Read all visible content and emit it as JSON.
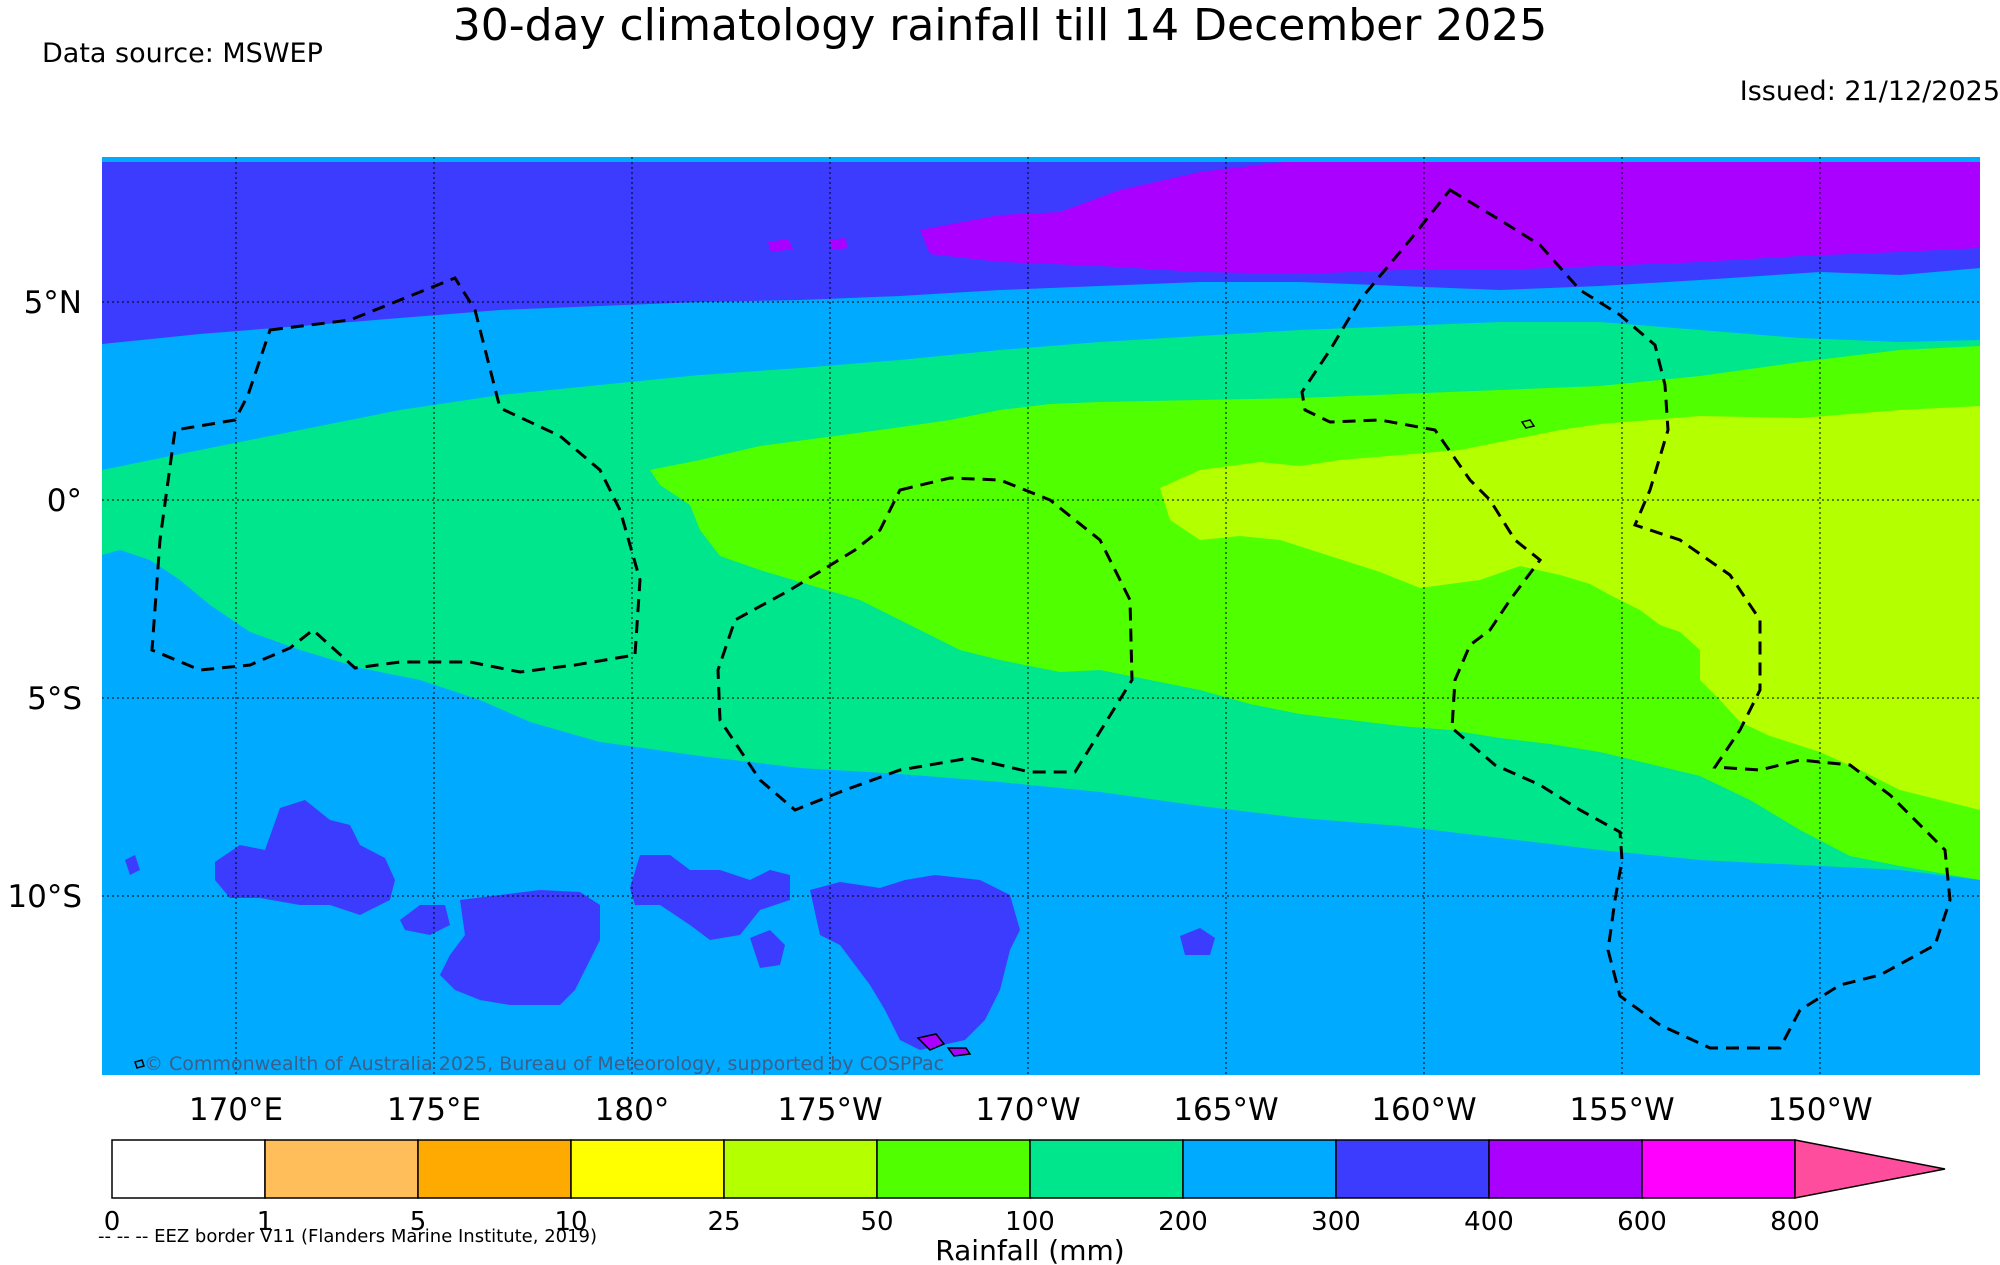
{
  "header": {
    "title": "30-day climatology rainfall till 14 December 2025",
    "data_source": "Data source: MSWEP",
    "issued": "Issued: 21/12/2025"
  },
  "map": {
    "lat_labels": [
      "5°N",
      "0°",
      "5°S",
      "10°S"
    ],
    "lon_labels": [
      "170°E",
      "175°E",
      "180°",
      "175°W",
      "170°W",
      "165°W",
      "160°W",
      "155°W",
      "150°W"
    ],
    "copyright": "© Commonwealth of Australia 2025, Bureau of Meteorology, supported by COSPPac"
  },
  "colorbar": {
    "title": "Rainfall (mm)",
    "ticks": [
      "0",
      "1",
      "5",
      "10",
      "25",
      "50",
      "100",
      "200",
      "300",
      "400",
      "600",
      "800"
    ],
    "colors": [
      "#ffffff",
      "#ffbe5a",
      "#ffaa00",
      "#ffff00",
      "#b4ff00",
      "#50ff00",
      "#00e68c",
      "#00aaff",
      "#3c3cff",
      "#aa00ff",
      "#ff00ff",
      "#ff4d9e"
    ]
  },
  "footer": {
    "eez_note": "-- -- -- EEZ border V11 (Flanders Marine Institute, 2019)"
  }
}
